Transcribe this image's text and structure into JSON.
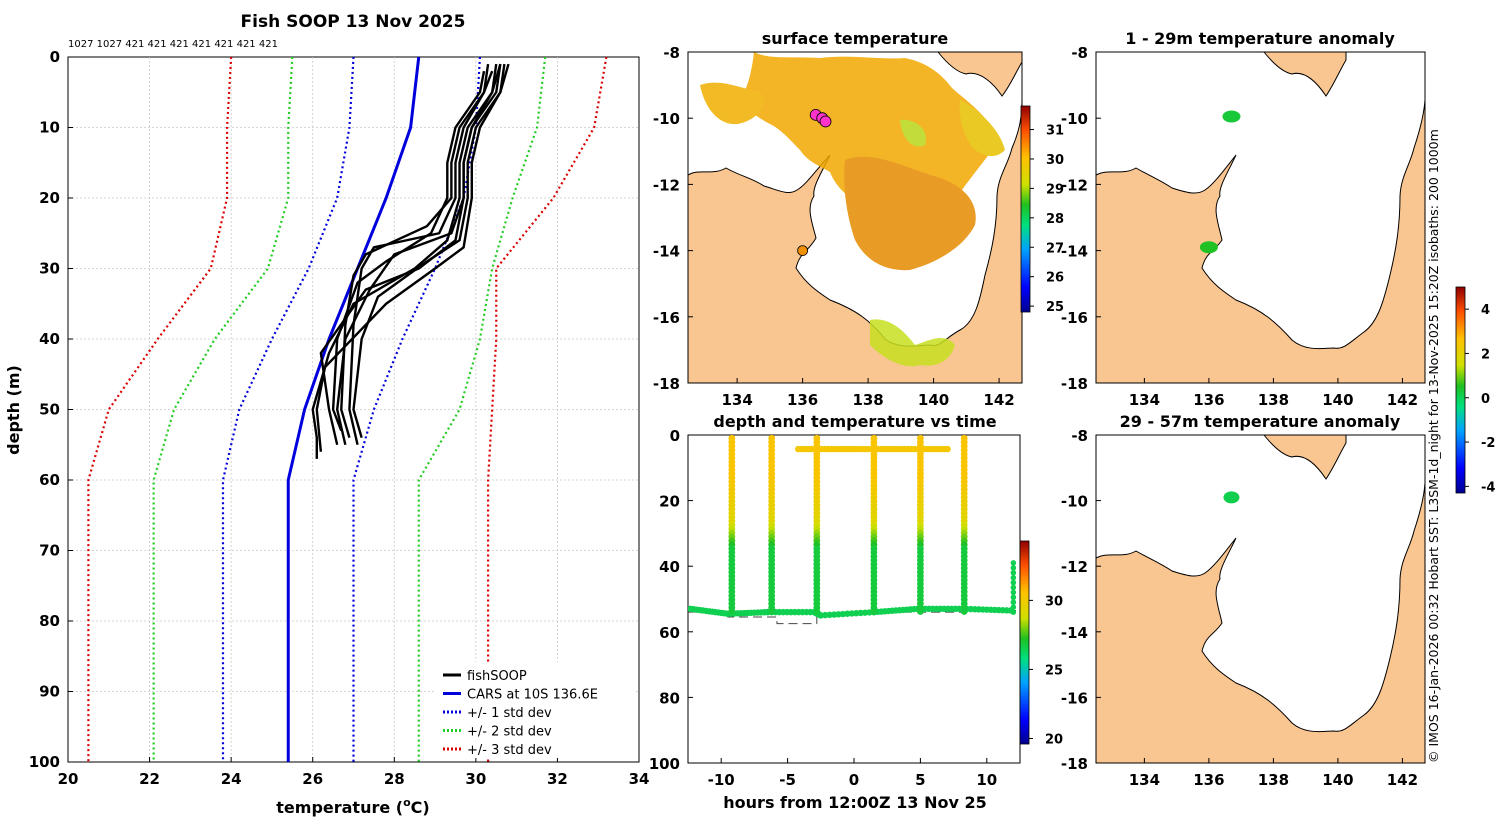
{
  "figure_title": "Fish SOOP 13 Nov 2025",
  "credit": "© IMOS 16-Jan-2026 00:32 Hobart SST: L3SM-1d_night for 13-Nov-2025 15:20Z isobaths: 200  1000m",
  "chart_data": [
    {
      "id": "profile",
      "type": "line",
      "title": "Fish SOOP 13 Nov 2025",
      "xlabel": "temperature (°C)",
      "xlabel_main": "temperature (",
      "xlabel_sup": "o",
      "xlabel_unit": "C)",
      "ylabel": "depth (m)",
      "xlim": [
        20,
        34
      ],
      "ylim": [
        0,
        100
      ],
      "y_reversed": true,
      "xticks": [
        20,
        22,
        24,
        26,
        28,
        30,
        32,
        34
      ],
      "yticks": [
        0,
        10,
        20,
        30,
        40,
        50,
        60,
        70,
        80,
        90,
        100
      ],
      "grid": true,
      "top_annotation": "1027 1027 421 421 421 421 421 421 421",
      "legend_position": "bottom-right",
      "legend": [
        {
          "label": "fishSOOP",
          "color": "#000000",
          "style": "solid"
        },
        {
          "label": "CARS at 10S 136.6E",
          "color": "#0000dd",
          "style": "solid"
        },
        {
          "label": "+/- 1 std dev",
          "color": "#0000dd",
          "style": "dotted"
        },
        {
          "label": "+/- 2 std dev",
          "color": "#22cc22",
          "style": "dotted"
        },
        {
          "label": "+/- 3 std dev",
          "color": "#dd0000",
          "style": "dotted"
        }
      ],
      "series": [
        {
          "name": "CARS",
          "color": "#0000dd",
          "style": "solid",
          "depth": [
            0,
            10,
            20,
            30,
            40,
            50,
            60,
            100
          ],
          "temp": [
            28.6,
            28.4,
            27.8,
            27.1,
            26.4,
            25.8,
            25.4,
            25.4
          ]
        },
        {
          "name": "-1 std",
          "color": "#0000dd",
          "style": "dotted",
          "depth": [
            0,
            10,
            20,
            30,
            40,
            50,
            60,
            100
          ],
          "temp": [
            27.0,
            26.9,
            26.6,
            25.9,
            25.0,
            24.2,
            23.8,
            23.8
          ]
        },
        {
          "name": "+1 std",
          "color": "#0000dd",
          "style": "dotted",
          "depth": [
            0,
            10,
            20,
            30,
            40,
            50,
            60,
            100
          ],
          "temp": [
            30.1,
            30.0,
            29.7,
            29.0,
            28.2,
            27.5,
            27.0,
            27.0
          ]
        },
        {
          "name": "-2 std",
          "color": "#22cc22",
          "style": "dotted",
          "depth": [
            0,
            10,
            20,
            30,
            40,
            50,
            60,
            100
          ],
          "temp": [
            25.5,
            25.4,
            25.4,
            24.9,
            23.6,
            22.6,
            22.1,
            22.1
          ]
        },
        {
          "name": "+2 std",
          "color": "#22cc22",
          "style": "dotted",
          "depth": [
            0,
            10,
            20,
            30,
            40,
            50,
            60,
            100
          ],
          "temp": [
            31.7,
            31.5,
            30.9,
            30.4,
            30.1,
            29.6,
            28.6,
            28.6
          ]
        },
        {
          "name": "-3 std",
          "color": "#dd0000",
          "style": "dotted",
          "depth": [
            0,
            10,
            20,
            30,
            40,
            50,
            60,
            100
          ],
          "temp": [
            24.0,
            23.9,
            23.9,
            23.5,
            22.2,
            21.0,
            20.5,
            20.5
          ]
        },
        {
          "name": "+3 std",
          "color": "#dd0000",
          "style": "dotted",
          "depth": [
            0,
            10,
            20,
            30,
            40,
            50,
            60,
            100
          ],
          "temp": [
            33.2,
            32.9,
            31.9,
            30.5,
            30.5,
            30.4,
            30.3,
            30.3
          ]
        }
      ],
      "casts": [
        {
          "depth": [
            1,
            5,
            10,
            15,
            20,
            26,
            30,
            35,
            42,
            50,
            54,
            57
          ],
          "temp": [
            30.5,
            30.4,
            29.8,
            29.6,
            29.6,
            29.3,
            28.5,
            27.0,
            26.4,
            26.0,
            26.1,
            26.1
          ]
        },
        {
          "depth": [
            1,
            5,
            10,
            15,
            20,
            25,
            28,
            33,
            40,
            50,
            55
          ],
          "temp": [
            30.6,
            30.5,
            29.9,
            29.7,
            29.7,
            29.4,
            28.0,
            27.4,
            26.8,
            26.6,
            26.8
          ]
        },
        {
          "depth": [
            1,
            5,
            10,
            15,
            20,
            25,
            27,
            30,
            38,
            50,
            55
          ],
          "temp": [
            30.3,
            30.2,
            29.7,
            29.5,
            29.5,
            29.1,
            27.5,
            27.2,
            27.0,
            26.9,
            27.1
          ]
        },
        {
          "depth": [
            1,
            5,
            10,
            15,
            20,
            26,
            29,
            34,
            40,
            50,
            54
          ],
          "temp": [
            30.8,
            30.6,
            30.0,
            29.8,
            29.8,
            29.6,
            28.8,
            27.6,
            27.2,
            27.0,
            27.2
          ]
        },
        {
          "depth": [
            2,
            5,
            10,
            15,
            20,
            24,
            28,
            31,
            38,
            50,
            54
          ],
          "temp": [
            30.4,
            30.2,
            29.6,
            29.4,
            29.4,
            28.8,
            27.3,
            27.0,
            26.8,
            26.7,
            26.9
          ]
        },
        {
          "depth": [
            1,
            5,
            10,
            15,
            20,
            27,
            30,
            35,
            44,
            50,
            56
          ],
          "temp": [
            30.7,
            30.6,
            30.1,
            29.9,
            29.9,
            29.7,
            29.0,
            27.8,
            26.3,
            26.1,
            26.2
          ]
        },
        {
          "depth": [
            2,
            5,
            10,
            15,
            20,
            25,
            29,
            32,
            40,
            50,
            53
          ],
          "temp": [
            30.2,
            30.1,
            29.5,
            29.3,
            29.3,
            28.9,
            27.8,
            27.1,
            26.6,
            26.5,
            26.7
          ]
        },
        {
          "depth": [
            1,
            5,
            10,
            15,
            20,
            26,
            30,
            33,
            42,
            50,
            55
          ],
          "temp": [
            30.6,
            30.4,
            29.9,
            29.7,
            29.7,
            29.5,
            28.6,
            27.3,
            26.2,
            26.4,
            26.6
          ]
        }
      ]
    },
    {
      "id": "surface-map",
      "type": "heatmap",
      "title": "surface temperature",
      "xlim": [
        132.5,
        142.7
      ],
      "ylim": [
        -18,
        -8
      ],
      "xticks": [
        134,
        136,
        138,
        140,
        142
      ],
      "yticks": [
        -8,
        -10,
        -12,
        -14,
        -16,
        -18
      ],
      "colorbar": {
        "min": 24.8,
        "max": 31.8,
        "ticks": [
          25,
          26,
          27,
          28,
          29,
          30,
          31
        ]
      },
      "ship_track": [
        {
          "lon": 136.4,
          "lat": -9.9
        },
        {
          "lon": 136.6,
          "lat": -10.0
        },
        {
          "lon": 136.7,
          "lat": -10.1
        }
      ],
      "station": {
        "lon": 136.0,
        "lat": -14.0
      }
    },
    {
      "id": "anomaly-1-29",
      "type": "heatmap",
      "title": "1 - 29m temperature anomaly",
      "xlim": [
        132.5,
        142.7
      ],
      "ylim": [
        -18,
        -8
      ],
      "xticks": [
        134,
        136,
        138,
        140,
        142
      ],
      "yticks": [
        -8,
        -10,
        -12,
        -14,
        -16,
        -18
      ],
      "points": [
        {
          "lon": 136.7,
          "lat": -9.95,
          "anomaly": 0.3
        },
        {
          "lon": 136.0,
          "lat": -13.9,
          "anomaly": 0.5
        }
      ]
    },
    {
      "id": "anomaly-29-57",
      "type": "heatmap",
      "title": "29 - 57m temperature anomaly",
      "xlim": [
        132.5,
        142.7
      ],
      "ylim": [
        -18,
        -8
      ],
      "xticks": [
        134,
        136,
        138,
        140,
        142
      ],
      "yticks": [
        -8,
        -10,
        -12,
        -14,
        -16,
        -18
      ],
      "points": [
        {
          "lon": 136.7,
          "lat": -9.9,
          "anomaly": 0.1
        }
      ],
      "colorbar": {
        "min": -4.3,
        "max": 5.0,
        "ticks": [
          -4,
          -2,
          0,
          2,
          4
        ]
      }
    },
    {
      "id": "depth-time",
      "type": "scatter",
      "title": "depth and temperature vs time",
      "xlabel": "hours from 12:00Z 13 Nov 25",
      "ylabel": "",
      "xlim": [
        -12.5,
        12.5
      ],
      "ylim": [
        0,
        100
      ],
      "y_reversed": true,
      "xticks": [
        -10,
        -5,
        0,
        5,
        10
      ],
      "yticks": [
        0,
        20,
        40,
        60,
        80,
        100
      ],
      "colorbar": {
        "min": 19.6,
        "max": 34.3,
        "ticks": [
          20,
          25,
          30
        ]
      },
      "bottom_hours": [
        -12.3,
        -9.5,
        -6.5,
        -3.0,
        -2.5,
        1.5,
        4.8,
        8.2,
        11.8
      ],
      "bottom_depths": [
        53,
        54.5,
        54,
        54,
        55,
        54,
        53,
        53,
        53.5
      ],
      "casts_hours": [
        -9.2,
        -6.2,
        -2.8,
        1.5,
        5.0,
        8.3
      ],
      "surface_run": {
        "start": -4.2,
        "end": 7.1,
        "depth": 4.3
      },
      "dashed_steps": [
        [
          -12.5,
          54
        ],
        [
          -9.5,
          54
        ],
        [
          -9.5,
          55.5
        ],
        [
          -5.8,
          55.5
        ],
        [
          -5.8,
          57.5
        ],
        [
          -2.8,
          57.5
        ],
        [
          -2.8,
          54.5
        ],
        [
          2,
          54.5
        ],
        [
          2,
          54
        ],
        [
          8.2,
          54
        ],
        [
          8.2,
          53.5
        ],
        [
          12.2,
          53.5
        ]
      ]
    }
  ]
}
